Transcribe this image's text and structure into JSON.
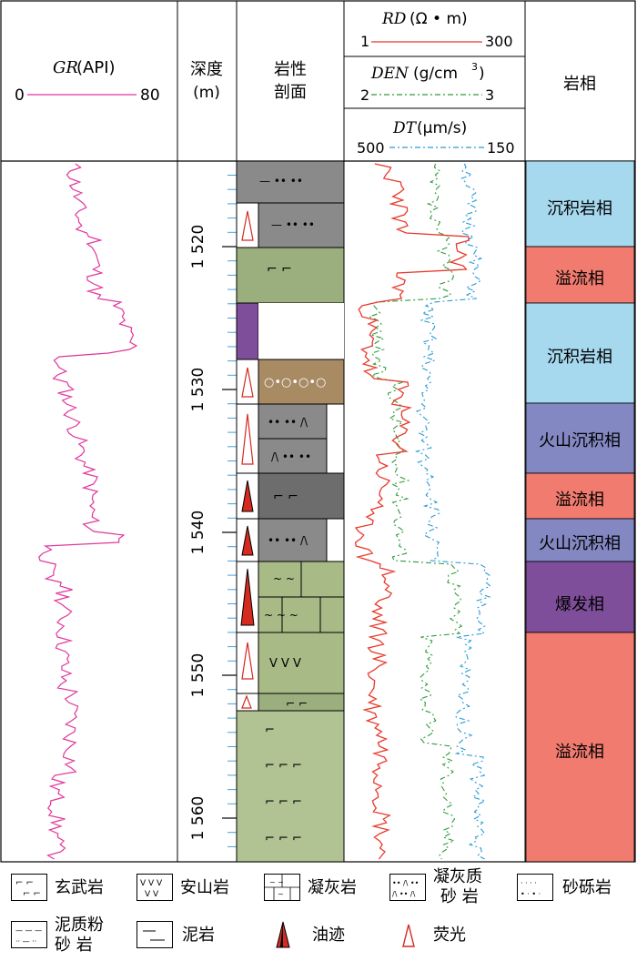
{
  "header": {
    "gr_title": "GR",
    "gr_unit": "(API)",
    "gr_min": "0",
    "gr_max": "80",
    "depth_title": "深度",
    "depth_unit": "(m)",
    "lith_title_1": "岩性",
    "lith_title_2": "剖面",
    "rd_title": "RD",
    "rd_unit": "(Ω • m)",
    "rd_min": "1",
    "rd_max": "300",
    "den_title": "DEN",
    "den_unit": "(g/cm",
    "den_unit_sup": "3",
    "den_unit_close": ")",
    "den_min": "2",
    "den_max": "3",
    "dt_title": "DT",
    "dt_unit": "(μm/s)",
    "dt_min": "500",
    "dt_max": "150",
    "facies_title": "岩相"
  },
  "depth_ticks": [
    "1 520",
    "1 530",
    "1 540",
    "1 550",
    "1 560"
  ],
  "facies": [
    {
      "label": "沉积岩相",
      "color": "#a6d8ee"
    },
    {
      "label": "溢流相",
      "color": "#f07b6e"
    },
    {
      "label": "沉积岩相",
      "color": "#a6d8ee"
    },
    {
      "label": "火山沉积相",
      "color": "#8388c2"
    },
    {
      "label": "溢流相",
      "color": "#f07b6e"
    },
    {
      "label": "火山沉积相",
      "color": "#8388c2"
    },
    {
      "label": "爆发相",
      "color": "#7e4e9a"
    },
    {
      "label": "溢流相",
      "color": "#f07b6e"
    }
  ],
  "legend": [
    {
      "label": "玄武岩",
      "icon": "basalt-pattern"
    },
    {
      "label": "安山岩",
      "icon": "andesite-pattern"
    },
    {
      "label": "凝灰岩",
      "icon": "tuff-pattern"
    },
    {
      "label_1": "凝灰质",
      "label_2": "砂 岩",
      "icon": "tuffaceous-sandstone-pattern"
    },
    {
      "label": "砂砾岩",
      "icon": "glutenite-pattern"
    },
    {
      "label_1": "泥质粉",
      "label_2": "砂 岩",
      "icon": "argillaceous-siltstone-pattern"
    },
    {
      "label": "泥岩",
      "icon": "mudstone-pattern"
    },
    {
      "label": "油迹",
      "icon": "oil-trace-icon"
    },
    {
      "label": "荧光",
      "icon": "fluorescence-icon"
    }
  ],
  "colors": {
    "gr_curve": "#e0359a",
    "rd_curve": "#e8382b",
    "den_curve": "#2e9b3a",
    "dt_curve": "#2a9ad6",
    "tuff_gray": "#808080",
    "basalt_green": "#9aae7e",
    "sandstone_brown": "#a88a63",
    "andesite_green": "#a8ba86"
  }
}
